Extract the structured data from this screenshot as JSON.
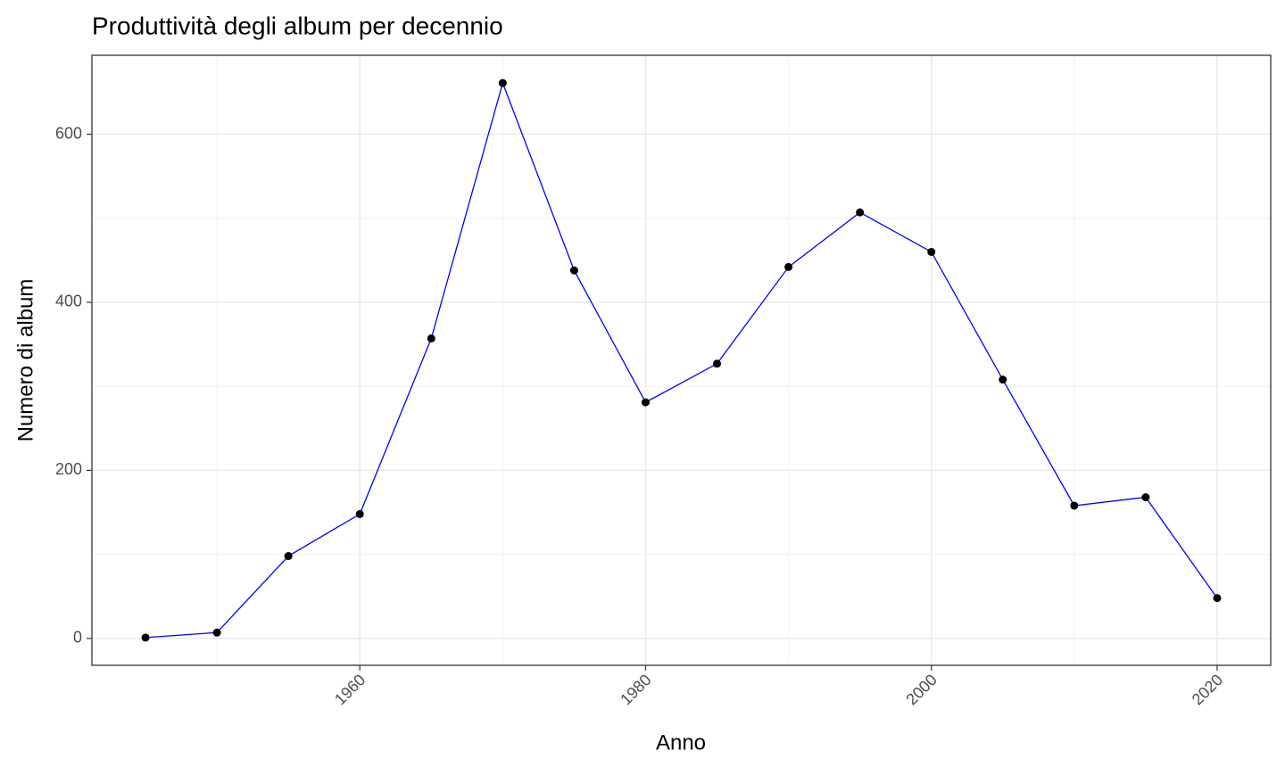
{
  "chart_data": {
    "type": "line",
    "title": "Produttività degli album per decennio",
    "x_label": "Anno",
    "y_label": "Numero di album",
    "x": [
      1945,
      1950,
      1955,
      1960,
      1965,
      1970,
      1975,
      1980,
      1985,
      1990,
      1995,
      2000,
      2005,
      2010,
      2015,
      2020
    ],
    "series": [
      {
        "name": "Numero di album",
        "color": "#0000ff",
        "marker_color": "#000000",
        "values": [
          1,
          7,
          98,
          148,
          357,
          661,
          438,
          281,
          327,
          442,
          507,
          460,
          308,
          158,
          168,
          48
        ]
      }
    ],
    "xlim": [
      1941.25,
      2023.75
    ],
    "ylim": [
      -32,
      694
    ],
    "xticks": [
      1960,
      1980,
      2000,
      2020
    ],
    "yticks": [
      0,
      200,
      400,
      600
    ],
    "x_minor_ticks": [
      1950,
      1970,
      1990,
      2010
    ],
    "y_minor_ticks": [
      100,
      300,
      500
    ],
    "grid": true
  }
}
